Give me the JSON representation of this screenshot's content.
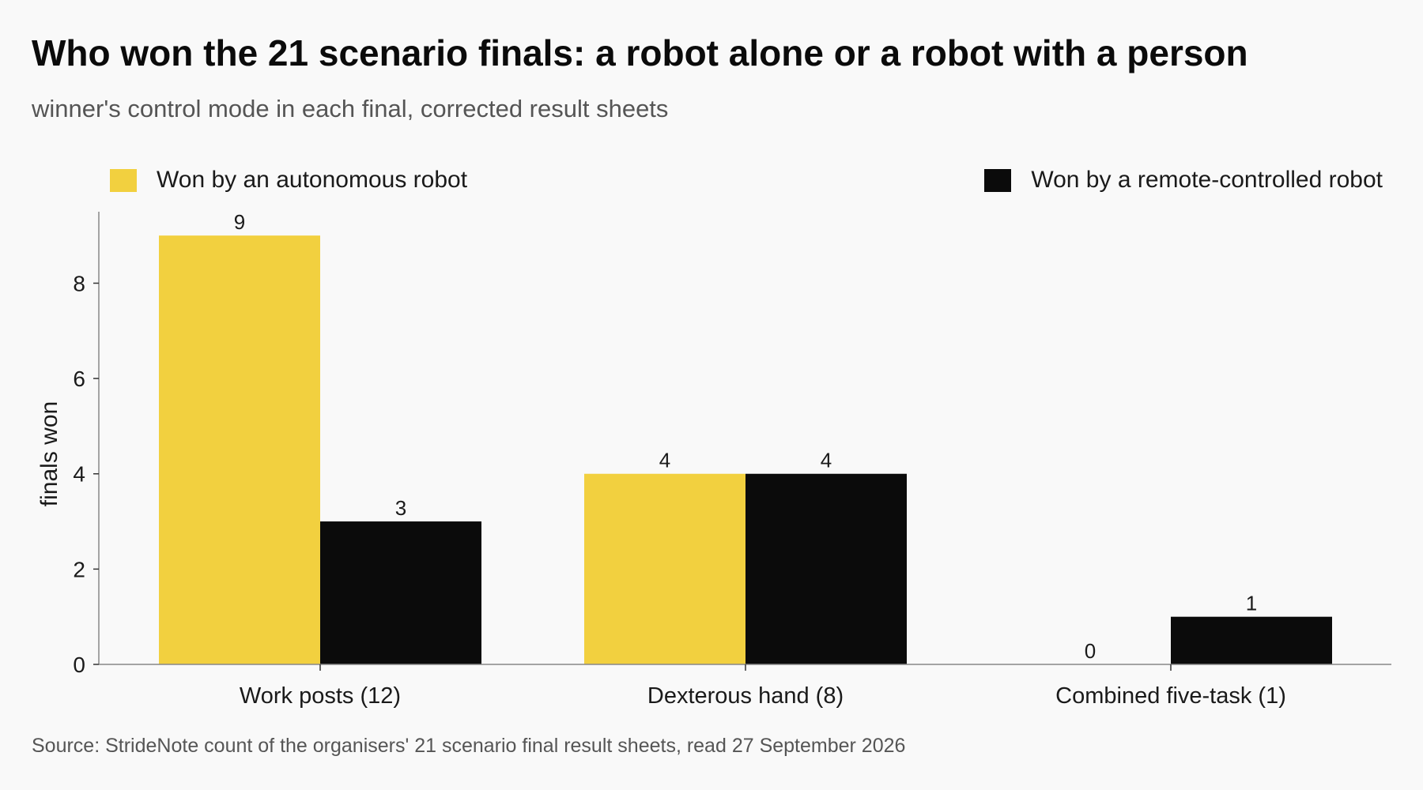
{
  "title": "Who won the 21 scenario finals: a robot alone or a robot with a person",
  "subtitle": "winner's control mode in each final, corrected result sheets",
  "source": "Source: StrideNote count of the organisers' 21 scenario final result sheets, read 27 September 2026",
  "colors": {
    "autonomous": "#f2d03f",
    "remote": "#0b0b0b",
    "axis": "#888888",
    "background": "#f9f9f9"
  },
  "chart_data": {
    "type": "bar",
    "categories": [
      "Work posts (12)",
      "Dexterous hand (8)",
      "Combined five-task (1)"
    ],
    "series": [
      {
        "name": "Won by an autonomous robot",
        "values": [
          9,
          4,
          0
        ]
      },
      {
        "name": "Won by a remote-controlled robot",
        "values": [
          3,
          4,
          1
        ]
      }
    ],
    "ylabel": "finals won",
    "xlabel": "",
    "ylim": [
      0,
      9.5
    ],
    "yticks": [
      0,
      2,
      4,
      6,
      8
    ],
    "data_labels": true,
    "grid": false,
    "legend": "top"
  }
}
